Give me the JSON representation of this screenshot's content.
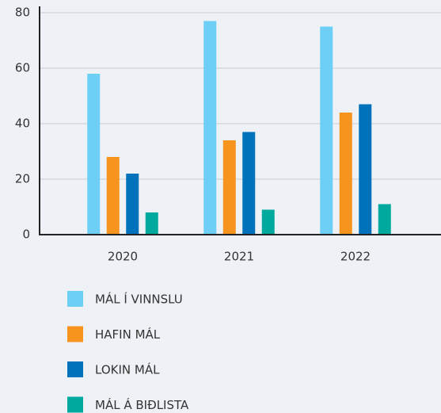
{
  "chart_data": {
    "type": "bar",
    "categories": [
      "2020",
      "2021",
      "2022"
    ],
    "series": [
      {
        "name": "MÁL Í VINNSLU",
        "color": "#6dcff6",
        "values": [
          58,
          77,
          75
        ]
      },
      {
        "name": "HAFIN MÁL",
        "color": "#f7941d",
        "values": [
          28,
          34,
          44
        ]
      },
      {
        "name": "LOKIN MÁL",
        "color": "#0072bc",
        "values": [
          22,
          37,
          47
        ]
      },
      {
        "name": "MÁL Á BIÐLISTA",
        "color": "#00a99d",
        "values": [
          8,
          9,
          11
        ]
      }
    ],
    "ylim": [
      0,
      80
    ],
    "yticks": [
      0,
      20,
      40,
      60,
      80
    ],
    "grid": true,
    "legend": "bottom"
  }
}
